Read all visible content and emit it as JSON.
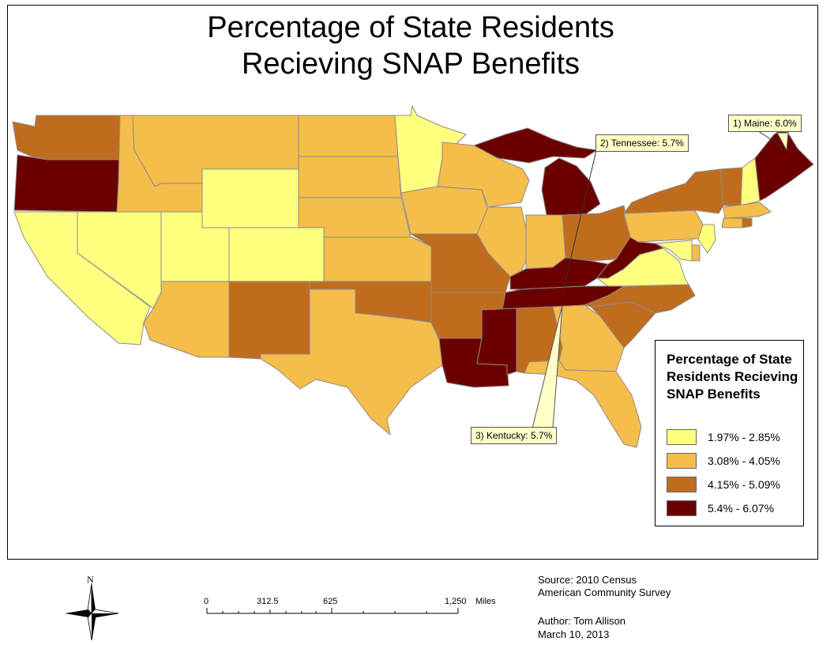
{
  "title": {
    "line1": "Percentage of State Residents",
    "line2": "Recieving SNAP Benefits"
  },
  "callouts": [
    {
      "id": "maine",
      "text": "1) Maine: 6.0%"
    },
    {
      "id": "tennessee",
      "text": "2) Tennessee: 5.7%"
    },
    {
      "id": "kentucky",
      "text": "3) Kentucky: 5.7%"
    }
  ],
  "legend": {
    "title": "Percentage of State Residents Recieving SNAP Benefits",
    "classes": [
      {
        "label": "1.97% - 2.85%",
        "color": "#ffff80"
      },
      {
        "label": "3.08% - 4.05%",
        "color": "#f5bd4a"
      },
      {
        "label": "4.15% - 5.09%",
        "color": "#c06c1e"
      },
      {
        "label": "5.4% - 6.07%",
        "color": "#6b0000"
      }
    ]
  },
  "north_arrow": {
    "label": "N"
  },
  "scale_bar": {
    "ticks": [
      "0",
      "312.5",
      "625",
      "1,250"
    ],
    "unit": "Miles"
  },
  "source": {
    "line1": "Source: 2010 Census",
    "line2": "American Community Survey"
  },
  "author": {
    "line1": "Author: Tom Allison",
    "line2": "March 10, 2013"
  },
  "colors": {
    "low": "#ffff80",
    "mid_low": "#f5bd4a",
    "mid_high": "#c06c1e",
    "high": "#6b0000",
    "state_border": "#8c8c8c",
    "callout_fill": "#ffffc8"
  }
}
